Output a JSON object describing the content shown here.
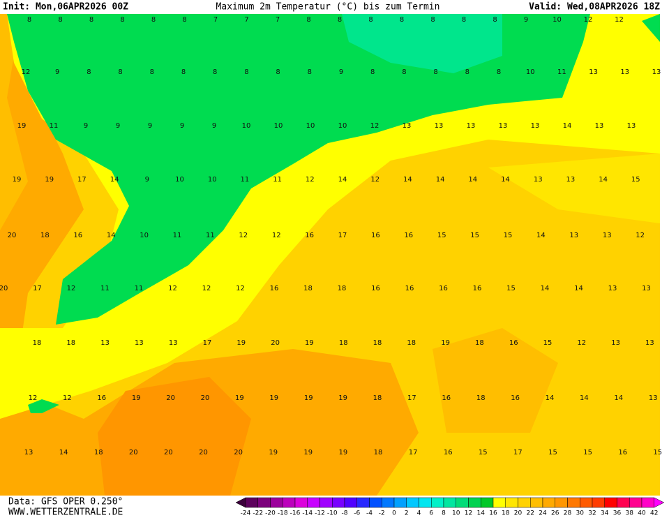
{
  "header": {
    "init": "Init: Mon,06APR2026 00Z",
    "title": "Maximum 2m Temperatur (°C) bis zum Termin",
    "valid": "Valid: Wed,08APR2026 18Z"
  },
  "map": {
    "rows": [
      [
        8,
        8,
        8,
        8,
        8,
        8,
        7,
        7,
        7,
        8,
        8,
        8,
        8,
        8,
        8,
        8,
        9,
        10,
        12,
        12
      ],
      [
        12,
        9,
        8,
        8,
        8,
        8,
        8,
        8,
        8,
        8,
        9,
        8,
        8,
        8,
        8,
        8,
        10,
        11,
        13,
        13,
        13
      ],
      [
        19,
        11,
        9,
        9,
        9,
        9,
        9,
        10,
        10,
        10,
        10,
        12,
        13,
        13,
        13,
        13,
        13,
        14,
        13,
        13
      ],
      [
        19,
        19,
        17,
        14,
        9,
        10,
        10,
        11,
        11,
        12,
        14,
        12,
        14,
        14,
        14,
        14,
        13,
        13,
        14,
        15
      ],
      [
        20,
        18,
        16,
        14,
        10,
        11,
        11,
        12,
        12,
        16,
        17,
        16,
        16,
        15,
        15,
        15,
        14,
        13,
        13,
        12
      ],
      [
        20,
        17,
        12,
        11,
        11,
        12,
        12,
        12,
        16,
        18,
        18,
        16,
        16,
        16,
        16,
        15,
        14,
        14,
        13,
        13
      ],
      [
        18,
        18,
        13,
        13,
        13,
        17,
        19,
        20,
        19,
        18,
        18,
        18,
        19,
        18,
        16,
        15,
        12,
        13,
        13
      ],
      [
        12,
        12,
        16,
        19,
        20,
        20,
        19,
        19,
        19,
        19,
        18,
        17,
        16,
        18,
        16,
        14,
        14,
        14,
        13
      ],
      [
        13,
        14,
        18,
        20,
        20,
        20,
        20,
        19,
        19,
        19,
        18,
        17,
        16,
        15,
        17,
        15,
        15,
        16,
        15
      ]
    ]
  },
  "colorbar": {
    "labels": [
      -24,
      -22,
      -20,
      -18,
      -16,
      -14,
      -12,
      -10,
      -8,
      -6,
      -4,
      -2,
      0,
      2,
      4,
      6,
      8,
      10,
      12,
      14,
      16,
      18,
      20,
      22,
      24,
      26,
      28,
      30,
      32,
      34,
      36,
      38,
      40,
      42
    ],
    "colors": [
      "#3c003c",
      "#5c005c",
      "#7c007c",
      "#9c009c",
      "#bc00bc",
      "#dc00dc",
      "#c800ff",
      "#a000ff",
      "#7800ff",
      "#5000ff",
      "#2828ff",
      "#0050ff",
      "#0078ff",
      "#00a0ff",
      "#00c8ff",
      "#00e6f0",
      "#00f0c8",
      "#00e6a0",
      "#00dc78",
      "#00d250",
      "#00c828",
      "#ffff00",
      "#ffe600",
      "#ffd200",
      "#ffbe00",
      "#ffaa00",
      "#ff9600",
      "#ff7800",
      "#ff5a00",
      "#ff3c00",
      "#ff0000",
      "#ff0050",
      "#ff0090",
      "#ff00c8",
      "#ff00ff"
    ]
  },
  "footer": {
    "data": "Data: GFS OPER 0.250°",
    "site": "WWW.WETTERZENTRALE.DE"
  }
}
